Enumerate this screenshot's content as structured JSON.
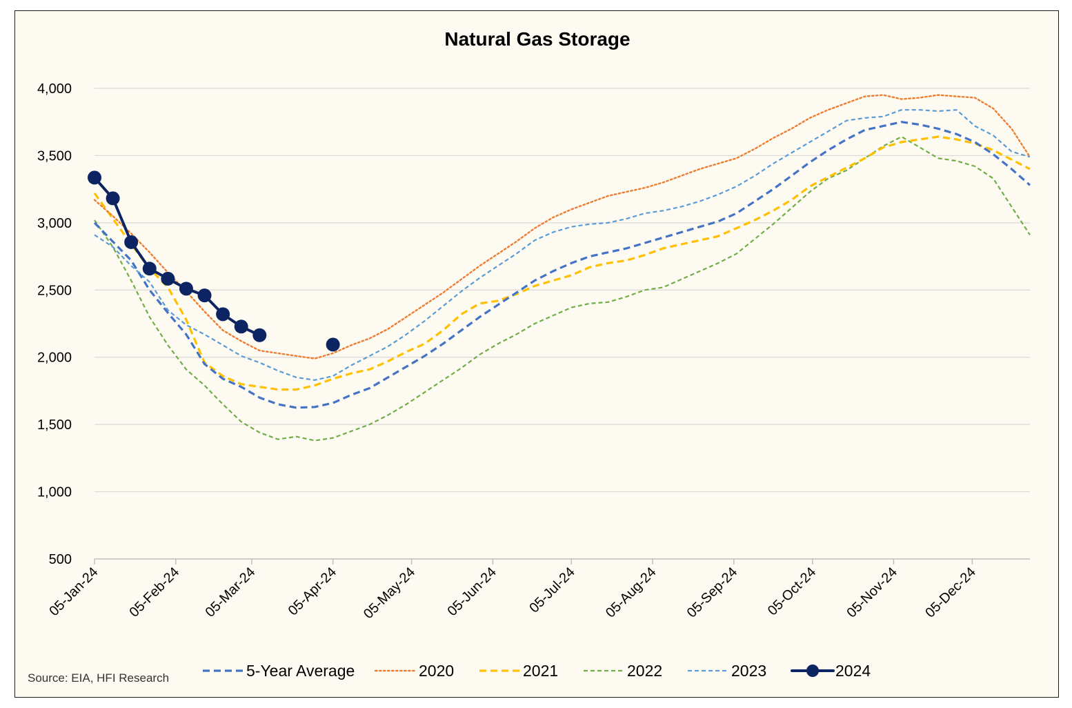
{
  "chart_data": {
    "type": "line",
    "title": "Natural Gas Storage",
    "source": "Source: EIA, HFI Research",
    "ylim": [
      500,
      4000
    ],
    "y_ticks": [
      "500",
      "1,000",
      "1,500",
      "2,000",
      "2,500",
      "3,000",
      "3,500",
      "4,000"
    ],
    "y_tick_values": [
      500,
      1000,
      1500,
      2000,
      2500,
      3000,
      3500,
      4000
    ],
    "x_ticks": [
      "05-Jan-24",
      "05-Feb-24",
      "05-Mar-24",
      "05-Apr-24",
      "05-May-24",
      "05-Jun-24",
      "05-Jul-24",
      "05-Aug-24",
      "05-Sep-24",
      "05-Oct-24",
      "05-Nov-24",
      "05-Dec-24"
    ],
    "x_tick_dates": [
      "2024-01-05",
      "2024-02-05",
      "2024-03-05",
      "2024-04-05",
      "2024-05-05",
      "2024-06-05",
      "2024-07-05",
      "2024-08-05",
      "2024-09-05",
      "2024-10-05",
      "2024-11-05",
      "2024-12-05"
    ],
    "xlim": [
      "2024-01-05",
      "2024-12-27"
    ],
    "grid": "horizontal",
    "legend_position": "bottom",
    "series": [
      {
        "name": "5-Year Average",
        "color": "#4472c4",
        "style": "dashed",
        "dates": [
          "2024-01-05",
          "2024-01-12",
          "2024-01-19",
          "2024-01-26",
          "2024-02-02",
          "2024-02-09",
          "2024-02-16",
          "2024-02-23",
          "2024-03-01",
          "2024-03-08",
          "2024-03-15",
          "2024-03-22",
          "2024-03-29",
          "2024-04-05",
          "2024-04-12",
          "2024-04-19",
          "2024-04-26",
          "2024-05-03",
          "2024-05-10",
          "2024-05-17",
          "2024-05-24",
          "2024-05-31",
          "2024-06-07",
          "2024-06-14",
          "2024-06-21",
          "2024-06-28",
          "2024-07-05",
          "2024-07-12",
          "2024-07-19",
          "2024-07-26",
          "2024-08-02",
          "2024-08-09",
          "2024-08-16",
          "2024-08-23",
          "2024-08-30",
          "2024-09-06",
          "2024-09-13",
          "2024-09-20",
          "2024-09-27",
          "2024-10-04",
          "2024-10-11",
          "2024-10-18",
          "2024-10-25",
          "2024-11-01",
          "2024-11-08",
          "2024-11-15",
          "2024-11-22",
          "2024-11-29",
          "2024-12-06",
          "2024-12-13",
          "2024-12-20",
          "2024-12-27"
        ],
        "values": [
          3000,
          2860,
          2720,
          2500,
          2330,
          2170,
          1950,
          1840,
          1780,
          1700,
          1650,
          1625,
          1630,
          1660,
          1720,
          1770,
          1850,
          1930,
          2010,
          2100,
          2200,
          2300,
          2390,
          2480,
          2570,
          2640,
          2700,
          2750,
          2780,
          2810,
          2850,
          2890,
          2930,
          2970,
          3010,
          3070,
          3160,
          3250,
          3350,
          3450,
          3540,
          3620,
          3690,
          3720,
          3750,
          3730,
          3700,
          3660,
          3600,
          3510,
          3400,
          3280
        ]
      },
      {
        "name": "2020",
        "color": "#ed7d31",
        "style": "dotted",
        "dates": [
          "2024-01-05",
          "2024-01-12",
          "2024-01-19",
          "2024-01-26",
          "2024-02-02",
          "2024-02-09",
          "2024-02-16",
          "2024-02-23",
          "2024-03-01",
          "2024-03-08",
          "2024-03-15",
          "2024-03-22",
          "2024-03-29",
          "2024-04-05",
          "2024-04-12",
          "2024-04-19",
          "2024-04-26",
          "2024-05-03",
          "2024-05-10",
          "2024-05-17",
          "2024-05-24",
          "2024-05-31",
          "2024-06-07",
          "2024-06-14",
          "2024-06-21",
          "2024-06-28",
          "2024-07-05",
          "2024-07-12",
          "2024-07-19",
          "2024-07-26",
          "2024-08-02",
          "2024-08-09",
          "2024-08-16",
          "2024-08-23",
          "2024-08-30",
          "2024-09-06",
          "2024-09-13",
          "2024-09-20",
          "2024-09-27",
          "2024-10-04",
          "2024-10-11",
          "2024-10-18",
          "2024-10-25",
          "2024-11-01",
          "2024-11-08",
          "2024-11-15",
          "2024-11-22",
          "2024-11-29",
          "2024-12-06",
          "2024-12-13",
          "2024-12-20",
          "2024-12-27"
        ],
        "values": [
          3170,
          3050,
          2920,
          2780,
          2630,
          2490,
          2340,
          2200,
          2120,
          2050,
          2030,
          2010,
          1990,
          2030,
          2090,
          2140,
          2210,
          2300,
          2390,
          2480,
          2580,
          2680,
          2770,
          2860,
          2960,
          3040,
          3100,
          3150,
          3200,
          3230,
          3260,
          3300,
          3350,
          3400,
          3440,
          3480,
          3550,
          3630,
          3700,
          3780,
          3840,
          3890,
          3940,
          3950,
          3920,
          3930,
          3950,
          3940,
          3930,
          3850,
          3700,
          3490
        ]
      },
      {
        "name": "2021",
        "color": "#ffc000",
        "style": "dashed",
        "dates": [
          "2024-01-05",
          "2024-01-12",
          "2024-01-19",
          "2024-01-26",
          "2024-02-02",
          "2024-02-09",
          "2024-02-16",
          "2024-02-23",
          "2024-03-01",
          "2024-03-08",
          "2024-03-15",
          "2024-03-22",
          "2024-03-29",
          "2024-04-05",
          "2024-04-12",
          "2024-04-19",
          "2024-04-26",
          "2024-05-03",
          "2024-05-10",
          "2024-05-17",
          "2024-05-24",
          "2024-05-31",
          "2024-06-07",
          "2024-06-14",
          "2024-06-21",
          "2024-06-28",
          "2024-07-05",
          "2024-07-12",
          "2024-07-19",
          "2024-07-26",
          "2024-08-02",
          "2024-08-09",
          "2024-08-16",
          "2024-08-23",
          "2024-08-30",
          "2024-09-06",
          "2024-09-13",
          "2024-09-20",
          "2024-09-27",
          "2024-10-04",
          "2024-10-11",
          "2024-10-18",
          "2024-10-25",
          "2024-11-01",
          "2024-11-08",
          "2024-11-15",
          "2024-11-22",
          "2024-11-29",
          "2024-12-06",
          "2024-12-13",
          "2024-12-20",
          "2024-12-27"
        ],
        "values": [
          3220,
          3030,
          2840,
          2660,
          2520,
          2280,
          1960,
          1860,
          1800,
          1780,
          1760,
          1760,
          1790,
          1840,
          1880,
          1910,
          1970,
          2040,
          2100,
          2200,
          2320,
          2400,
          2420,
          2470,
          2530,
          2570,
          2610,
          2670,
          2700,
          2720,
          2760,
          2810,
          2840,
          2870,
          2900,
          2960,
          3020,
          3090,
          3170,
          3270,
          3340,
          3410,
          3480,
          3560,
          3600,
          3620,
          3640,
          3620,
          3590,
          3540,
          3470,
          3400
        ]
      },
      {
        "name": "2022",
        "color": "#70ad47",
        "style": "dashed-small",
        "dates": [
          "2024-01-05",
          "2024-01-12",
          "2024-01-19",
          "2024-01-26",
          "2024-02-02",
          "2024-02-09",
          "2024-02-16",
          "2024-02-23",
          "2024-03-01",
          "2024-03-08",
          "2024-03-15",
          "2024-03-22",
          "2024-03-29",
          "2024-04-05",
          "2024-04-12",
          "2024-04-19",
          "2024-04-26",
          "2024-05-03",
          "2024-05-10",
          "2024-05-17",
          "2024-05-24",
          "2024-05-31",
          "2024-06-07",
          "2024-06-14",
          "2024-06-21",
          "2024-06-28",
          "2024-07-05",
          "2024-07-12",
          "2024-07-19",
          "2024-07-26",
          "2024-08-02",
          "2024-08-09",
          "2024-08-16",
          "2024-08-23",
          "2024-08-30",
          "2024-09-06",
          "2024-09-13",
          "2024-09-20",
          "2024-09-27",
          "2024-10-04",
          "2024-10-11",
          "2024-10-18",
          "2024-10-25",
          "2024-11-01",
          "2024-11-08",
          "2024-11-15",
          "2024-11-22",
          "2024-11-29",
          "2024-12-06",
          "2024-12-13",
          "2024-12-20",
          "2024-12-27"
        ],
        "values": [
          3020,
          2820,
          2570,
          2300,
          2090,
          1910,
          1790,
          1650,
          1520,
          1440,
          1390,
          1410,
          1380,
          1400,
          1450,
          1500,
          1570,
          1650,
          1740,
          1830,
          1920,
          2020,
          2100,
          2170,
          2250,
          2310,
          2370,
          2400,
          2410,
          2450,
          2500,
          2520,
          2580,
          2640,
          2700,
          2770,
          2880,
          2990,
          3110,
          3230,
          3330,
          3390,
          3480,
          3570,
          3640,
          3560,
          3480,
          3460,
          3420,
          3330,
          3120,
          2910
        ]
      },
      {
        "name": "2023",
        "color": "#5b9bd5",
        "style": "dashed-small",
        "dates": [
          "2024-01-05",
          "2024-01-12",
          "2024-01-19",
          "2024-01-26",
          "2024-02-02",
          "2024-02-09",
          "2024-02-16",
          "2024-02-23",
          "2024-03-01",
          "2024-03-08",
          "2024-03-15",
          "2024-03-22",
          "2024-03-29",
          "2024-04-05",
          "2024-04-12",
          "2024-04-19",
          "2024-04-26",
          "2024-05-03",
          "2024-05-10",
          "2024-05-17",
          "2024-05-24",
          "2024-05-31",
          "2024-06-07",
          "2024-06-14",
          "2024-06-21",
          "2024-06-28",
          "2024-07-05",
          "2024-07-12",
          "2024-07-19",
          "2024-07-26",
          "2024-08-02",
          "2024-08-09",
          "2024-08-16",
          "2024-08-23",
          "2024-08-30",
          "2024-09-06",
          "2024-09-13",
          "2024-09-20",
          "2024-09-27",
          "2024-10-04",
          "2024-10-11",
          "2024-10-18",
          "2024-10-25",
          "2024-11-01",
          "2024-11-08",
          "2024-11-15",
          "2024-11-22",
          "2024-11-29",
          "2024-12-06",
          "2024-12-13",
          "2024-12-20",
          "2024-12-27"
        ],
        "values": [
          2910,
          2820,
          2680,
          2560,
          2350,
          2240,
          2170,
          2090,
          2010,
          1960,
          1900,
          1850,
          1830,
          1860,
          1940,
          2010,
          2080,
          2170,
          2270,
          2380,
          2490,
          2590,
          2680,
          2770,
          2870,
          2930,
          2970,
          2990,
          3000,
          3030,
          3070,
          3090,
          3120,
          3160,
          3210,
          3270,
          3350,
          3440,
          3520,
          3600,
          3680,
          3760,
          3780,
          3790,
          3840,
          3840,
          3830,
          3840,
          3720,
          3650,
          3530,
          3490
        ]
      },
      {
        "name": "2024",
        "color": "#0c2461",
        "style": "solid-markers",
        "dates": [
          "2024-01-05",
          "2024-01-12",
          "2024-01-19",
          "2024-01-26",
          "2024-02-02",
          "2024-02-09",
          "2024-02-16",
          "2024-02-23",
          "2024-03-01",
          "2024-03-08",
          "2024-04-05"
        ],
        "values": [
          3336,
          3182,
          2856,
          2659,
          2584,
          2510,
          2460,
          2320,
          2228,
          2164,
          2094
        ],
        "break_before_index": 10
      }
    ]
  }
}
